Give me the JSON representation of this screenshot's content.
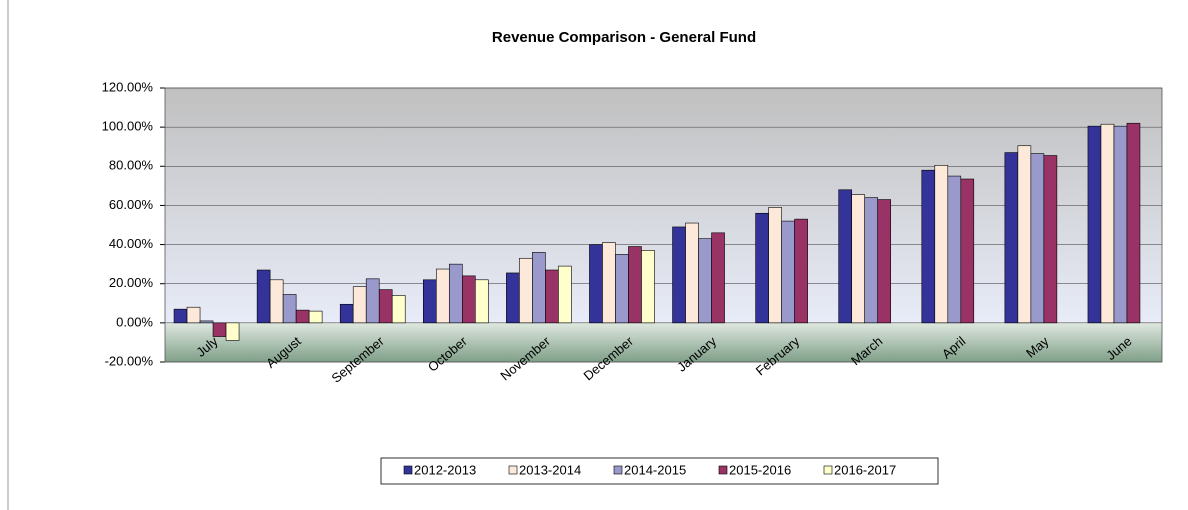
{
  "chart_data": {
    "type": "bar",
    "title": "Revenue Comparison - General Fund",
    "categories": [
      "July",
      "August",
      "September",
      "October",
      "November",
      "December",
      "January",
      "February",
      "March",
      "April",
      "May",
      "June"
    ],
    "series": [
      {
        "name": "2012-2013",
        "color": "#333399",
        "values": [
          7,
          27,
          9.5,
          22,
          25.5,
          40,
          49,
          56,
          68,
          78,
          87,
          100.5
        ]
      },
      {
        "name": "2013-2014",
        "color": "#fde9d9",
        "values": [
          8,
          22,
          18.5,
          27.5,
          33,
          41,
          51,
          59,
          65.5,
          80.5,
          90.5,
          101.5
        ]
      },
      {
        "name": "2014-2015",
        "color": "#9999cc",
        "values": [
          1,
          14.5,
          22.5,
          30,
          36,
          35,
          43,
          52,
          64,
          75,
          86.5,
          100.5
        ]
      },
      {
        "name": "2015-2016",
        "color": "#993366",
        "values": [
          -7,
          6.5,
          17,
          24,
          27,
          39,
          46,
          53,
          63,
          73.5,
          85.5,
          102
        ]
      },
      {
        "name": "2016-2017",
        "color": "#ffffcc",
        "values": [
          -9,
          6,
          14,
          22,
          29,
          37,
          null,
          null,
          null,
          null,
          null,
          null
        ]
      }
    ],
    "ylim": [
      -20,
      120
    ],
    "yticks": [
      {
        "value": -20,
        "label": "-20.00%"
      },
      {
        "value": 0,
        "label": "0.00%"
      },
      {
        "value": 20,
        "label": "20.00%"
      },
      {
        "value": 40,
        "label": "40.00%"
      },
      {
        "value": 60,
        "label": "60.00%"
      },
      {
        "value": 80,
        "label": "80.00%"
      },
      {
        "value": 100,
        "label": "100.00%"
      },
      {
        "value": 120,
        "label": "120.00%"
      }
    ],
    "grid": true,
    "legend": "bottom"
  }
}
